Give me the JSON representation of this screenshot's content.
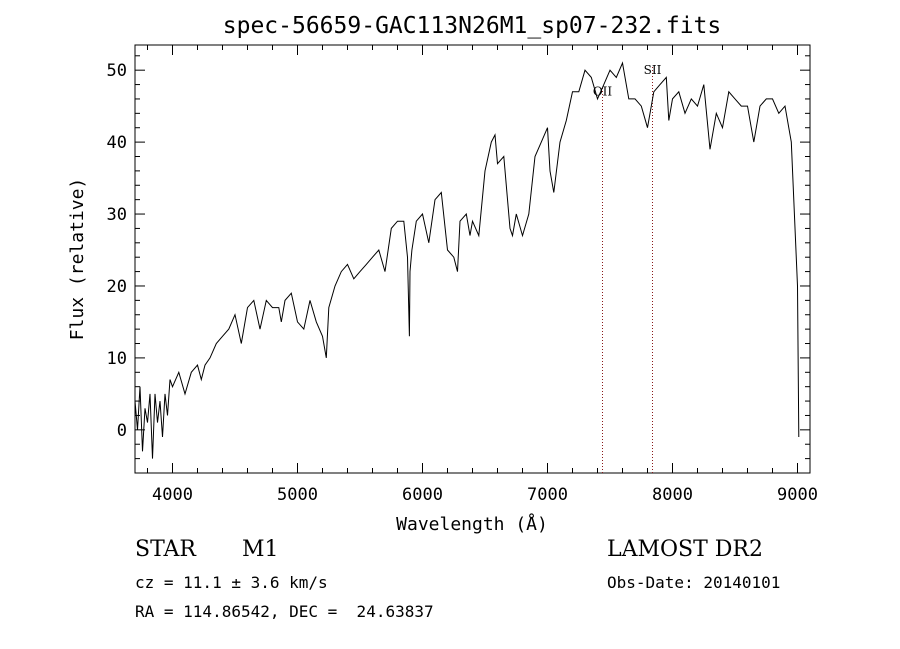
{
  "chart_data": {
    "type": "line",
    "title": "spec-56659-GAC113N26M1_sp07-232.fits",
    "xlabel": "Wavelength (Å)",
    "ylabel": "Flux (relative)",
    "xlim": [
      3700,
      9100
    ],
    "ylim": [
      -6,
      53.5
    ],
    "xticks": [
      4000,
      5000,
      6000,
      7000,
      8000,
      9000
    ],
    "yticks": [
      0,
      10,
      20,
      30,
      40,
      50
    ],
    "x_minor_step": 200,
    "y_minor_step": 2,
    "grid": false,
    "line_color": "#000000",
    "annotation_line_color": "#8b1a1a",
    "annotations": [
      {
        "label": "OII",
        "x": 7440,
        "y_label": 46.5
      },
      {
        "label": "SII",
        "x": 7840,
        "y_label": 49.5
      }
    ],
    "series": [
      {
        "x": [
          3700,
          3720,
          3740,
          3760,
          3780,
          3800,
          3820,
          3840,
          3860,
          3880,
          3900,
          3920,
          3940,
          3960,
          3980,
          4000,
          4050,
          4100,
          4150,
          4200,
          4230,
          4260,
          4300,
          4350,
          4400,
          4450,
          4500,
          4550,
          4600,
          4650,
          4700,
          4750,
          4800,
          4850,
          4870,
          4900,
          4950,
          5000,
          5050,
          5100,
          5150,
          5200,
          5230,
          5250,
          5300,
          5350,
          5400,
          5450,
          5500,
          5550,
          5600,
          5650,
          5700,
          5750,
          5800,
          5850,
          5880,
          5895,
          5900,
          5915,
          5950,
          6000,
          6050,
          6100,
          6150,
          6200,
          6250,
          6280,
          6300,
          6350,
          6380,
          6400,
          6450,
          6500,
          6550,
          6580,
          6600,
          6650,
          6700,
          6720,
          6750,
          6800,
          6850,
          6900,
          6950,
          7000,
          7020,
          7050,
          7100,
          7150,
          7200,
          7250,
          7300,
          7350,
          7400,
          7450,
          7500,
          7550,
          7600,
          7650,
          7700,
          7750,
          7800,
          7850,
          7900,
          7950,
          7970,
          8000,
          8050,
          8100,
          8150,
          8200,
          8250,
          8300,
          8350,
          8400,
          8450,
          8500,
          8550,
          8600,
          8650,
          8700,
          8750,
          8800,
          8850,
          8900,
          8950,
          9000,
          9010
        ],
        "y": [
          4,
          0,
          6,
          -3,
          3,
          1,
          5,
          -4,
          5,
          1,
          4,
          -1,
          5,
          2,
          7,
          6,
          8,
          5,
          8,
          9,
          7,
          9,
          10,
          12,
          13,
          14,
          16,
          12,
          17,
          18,
          14,
          18,
          17,
          17,
          15,
          18,
          19,
          15,
          14,
          18,
          15,
          13,
          10,
          17,
          20,
          22,
          23,
          21,
          22,
          23,
          24,
          25,
          22,
          28,
          29,
          29,
          24,
          13,
          22,
          25,
          29,
          30,
          26,
          32,
          33,
          25,
          24,
          22,
          29,
          30,
          27,
          29,
          27,
          36,
          40,
          41,
          37,
          38,
          28,
          27,
          30,
          27,
          30,
          38,
          40,
          42,
          36,
          33,
          40,
          43,
          47,
          47,
          50,
          49,
          46,
          48,
          50,
          49,
          51,
          46,
          46,
          45,
          42,
          47,
          48,
          49,
          43,
          46,
          47,
          44,
          46,
          45,
          48,
          39,
          44,
          42,
          47,
          46,
          45,
          45,
          40,
          45,
          46,
          46,
          44,
          45,
          40,
          20,
          -1
        ]
      }
    ]
  },
  "info": {
    "object_class": "STAR",
    "subclass": "M1",
    "survey": "LAMOST DR2",
    "cz": "cz = 11.1 ± 3.6 km/s",
    "obs_date": "Obs-Date: 20140101",
    "coords": "RA = 114.86542, DEC =  24.63837"
  }
}
